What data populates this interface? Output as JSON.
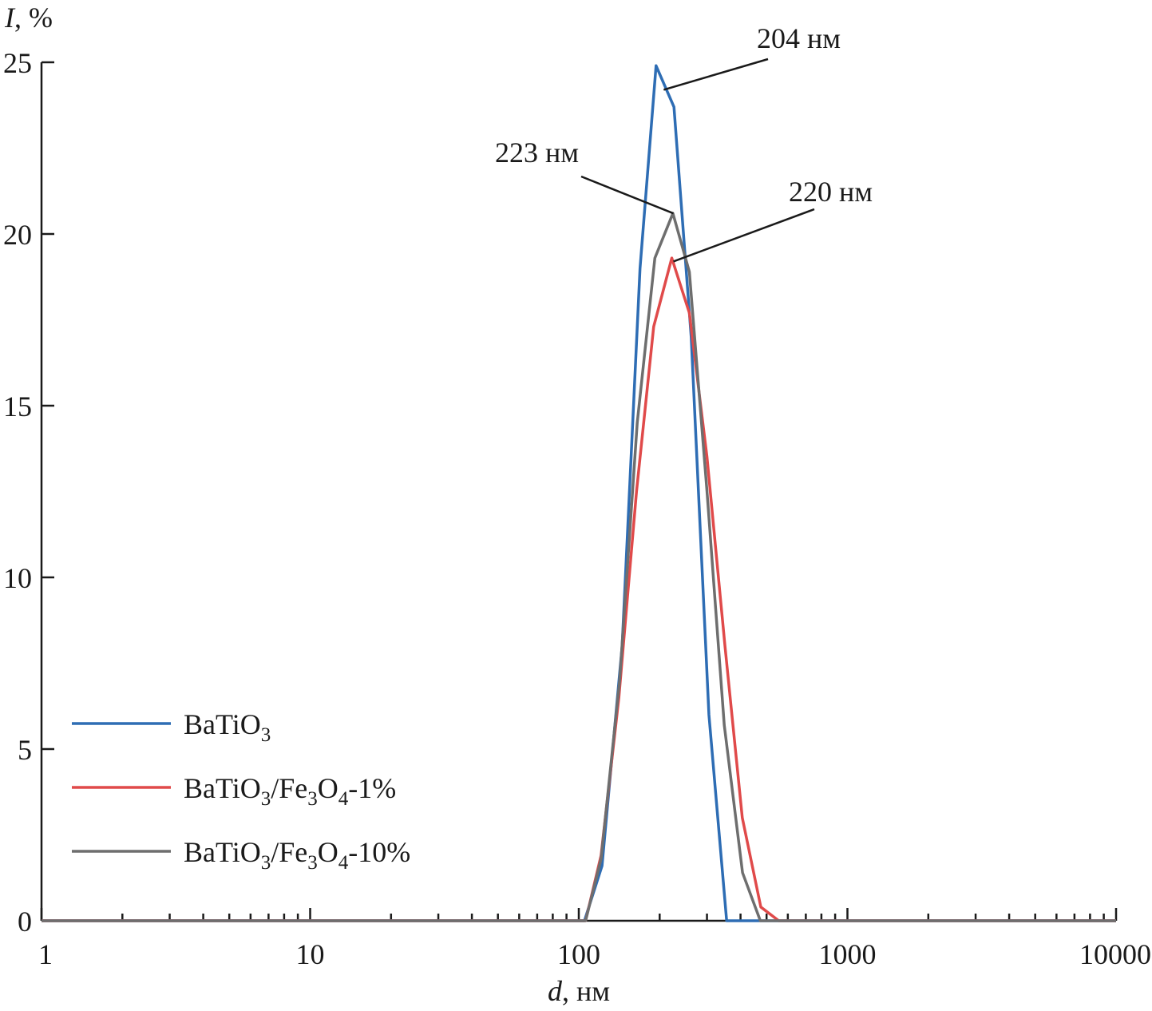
{
  "chart_data": {
    "type": "line",
    "xscale": "log",
    "xlim": [
      1,
      10000
    ],
    "ylim": [
      0,
      25
    ],
    "xlabel": "d, нм",
    "xlabel_italic": "d",
    "xlabel_rest": ", нм",
    "ylabel": "I, %",
    "ylabel_italic": "I",
    "ylabel_rest": ", %",
    "title": "",
    "grid": false,
    "legend_position": "bottom-left",
    "x_ticks": [
      {
        "value": 1,
        "label": "1"
      },
      {
        "value": 10,
        "label": "10"
      },
      {
        "value": 100,
        "label": "100"
      },
      {
        "value": 1000,
        "label": "1000"
      },
      {
        "value": 10000,
        "label": "10000"
      }
    ],
    "y_ticks": [
      {
        "value": 0,
        "label": "0"
      },
      {
        "value": 5,
        "label": "5"
      },
      {
        "value": 10,
        "label": "10"
      },
      {
        "value": 15,
        "label": "15"
      },
      {
        "value": 20,
        "label": "20"
      },
      {
        "value": 25,
        "label": "25"
      }
    ],
    "series": [
      {
        "name": "BaTiO3",
        "legend": {
          "base": "BaTiO",
          "parts": [
            {
              "sub": "3",
              "text": ""
            }
          ]
        },
        "color": "#2e6db4",
        "points": [
          [
            1,
            0
          ],
          [
            105,
            0
          ],
          [
            122,
            1.6
          ],
          [
            145,
            8
          ],
          [
            169,
            19
          ],
          [
            194,
            24.9
          ],
          [
            226,
            23.7
          ],
          [
            262,
            17
          ],
          [
            305,
            6
          ],
          [
            355,
            0
          ],
          [
            10000,
            0
          ]
        ]
      },
      {
        "name": "BaTiO3/Fe3O4-1%",
        "legend": {
          "base": "BaTiO",
          "parts": [
            {
              "sub": "3",
              "text": "/Fe"
            },
            {
              "sub": "3",
              "text": "O"
            },
            {
              "sub": "4",
              "text": "-1%"
            }
          ]
        },
        "color": "#e04a4a",
        "points": [
          [
            1,
            0
          ],
          [
            106,
            0
          ],
          [
            121,
            1.9
          ],
          [
            141,
            6.5
          ],
          [
            164,
            12.5
          ],
          [
            190,
            17.3
          ],
          [
            222,
            19.3
          ],
          [
            258,
            17.7
          ],
          [
            300,
            13.5
          ],
          [
            350,
            8
          ],
          [
            406,
            3
          ],
          [
            476,
            0.4
          ],
          [
            555,
            0
          ],
          [
            10000,
            0
          ]
        ]
      },
      {
        "name": "BaTiO3/Fe3O4-10%",
        "legend": {
          "base": "BaTiO",
          "parts": [
            {
              "sub": "3",
              "text": "/Fe"
            },
            {
              "sub": "3",
              "text": "O"
            },
            {
              "sub": "4",
              "text": "-10%"
            }
          ]
        },
        "color": "#6e6e6e",
        "points": [
          [
            1,
            0
          ],
          [
            106,
            0
          ],
          [
            121,
            1.8
          ],
          [
            142,
            7
          ],
          [
            165,
            14.5
          ],
          [
            192,
            19.3
          ],
          [
            224,
            20.6
          ],
          [
            258,
            18.9
          ],
          [
            300,
            12.5
          ],
          [
            348,
            5.7
          ],
          [
            407,
            1.4
          ],
          [
            474,
            0
          ],
          [
            10000,
            0
          ]
        ]
      }
    ],
    "annotations": [
      {
        "text": "204 нм",
        "target": [
          207,
          24.2
        ]
      },
      {
        "text": "223 нм",
        "target": [
          225,
          20.6
        ]
      },
      {
        "text": "220 нм",
        "target": [
          225,
          19.2
        ]
      }
    ]
  }
}
